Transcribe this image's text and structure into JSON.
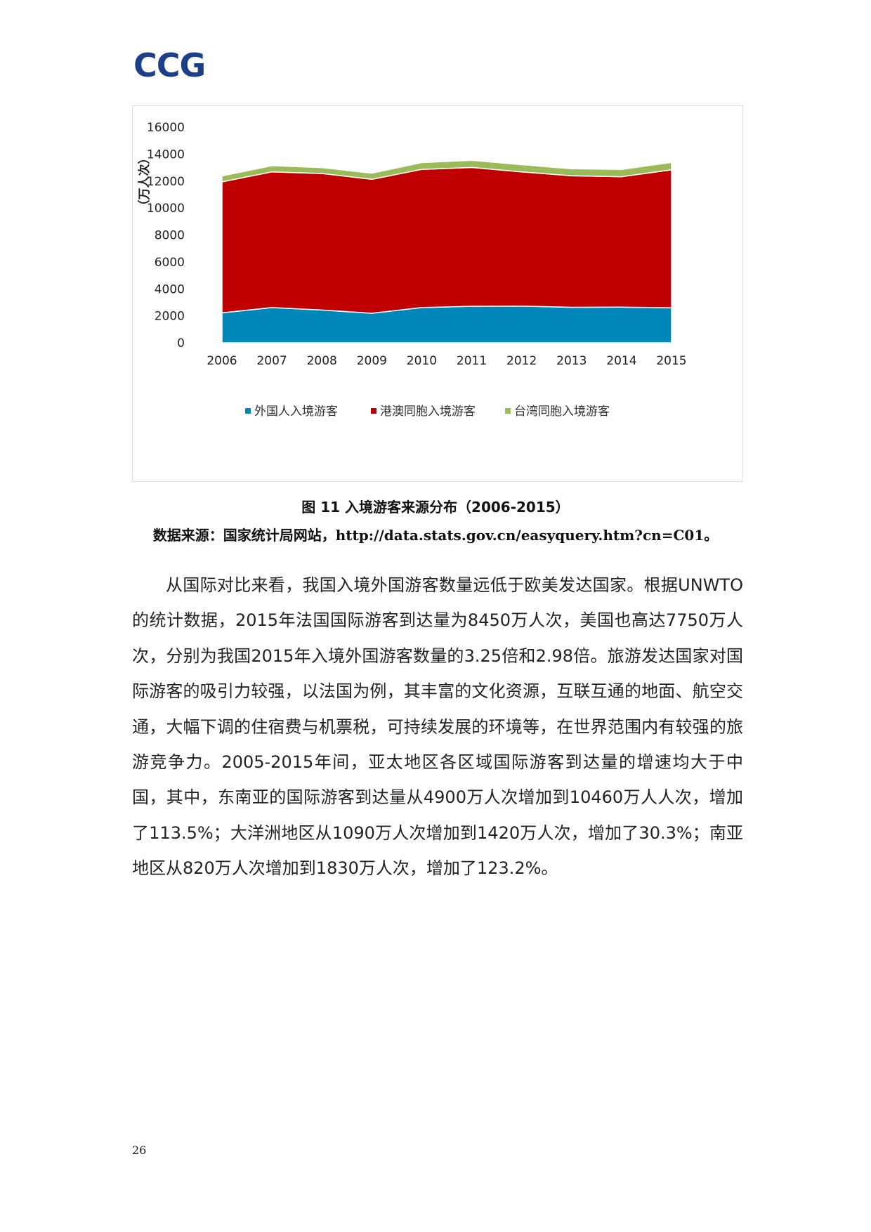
{
  "header": {
    "logo_text": "CCG"
  },
  "figure": {
    "caption": "图 11 入境游客来源分布（2006-2015）",
    "source_prefix": "数据来源：国家统计局网站，",
    "source_url": "http://data.stats.gov.cn/easyquery.htm?cn=C01。"
  },
  "chart_data": {
    "type": "area",
    "stacked": true,
    "ylabel": "（万人次）",
    "xlabel": "",
    "ylim": [
      0,
      16000
    ],
    "yticks": [
      0,
      2000,
      4000,
      6000,
      8000,
      10000,
      12000,
      14000,
      16000
    ],
    "x": [
      "2006",
      "2007",
      "2008",
      "2009",
      "2010",
      "2011",
      "2012",
      "2013",
      "2014",
      "2015"
    ],
    "series": [
      {
        "name": "外国人入境游客",
        "color": "#0086b8",
        "values": [
          2220,
          2610,
          2430,
          2190,
          2610,
          2710,
          2720,
          2630,
          2640,
          2600
        ]
      },
      {
        "name": "港澳同胞入境游客",
        "color": "#c00000",
        "values": [
          9720,
          10070,
          10130,
          9940,
          10250,
          10300,
          9960,
          9760,
          9680,
          10230
        ]
      },
      {
        "name": "台湾同胞入境游客",
        "color": "#9bbb59",
        "values": [
          440,
          460,
          440,
          450,
          510,
          530,
          530,
          520,
          540,
          550
        ]
      }
    ],
    "legend_position": "bottom",
    "grid": false
  },
  "body": {
    "paragraph": "从国际对比来看，我国入境外国游客数量远低于欧美发达国家。根据UNWTO的统计数据，2015年法国国际游客到达量为8450万人次，美国也高达7750万人次，分别为我国2015年入境外国游客数量的3.25倍和2.98倍。旅游发达国家对国际游客的吸引力较强，以法国为例，其丰富的文化资源，互联互通的地面、航空交通，大幅下调的住宿费与机票税，可持续发展的环境等，在世界范围内有较强的旅游竞争力。2005-2015年间，亚太地区各区域国际游客到达量的增速均大于中国，其中，东南亚的国际游客到达量从4900万人次增加到10460万人人次，增加了113.5%；大洋洲地区从1090万人次增加到1420万人次，增加了30.3%；南亚地区从820万人次增加到1830万人次，增加了123.2%。"
  },
  "footer": {
    "page_number": "26"
  }
}
